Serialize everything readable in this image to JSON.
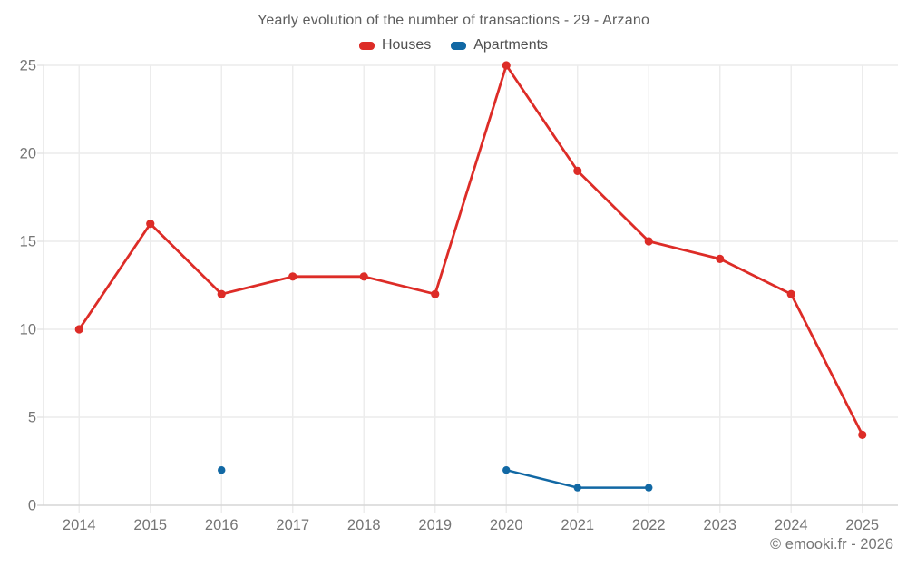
{
  "title": "Yearly evolution of the number of transactions - 29 - Arzano",
  "legend": [
    {
      "label": "Houses",
      "color": "#dd2c27"
    },
    {
      "label": "Apartments",
      "color": "#1168a4"
    }
  ],
  "footer": {
    "copyright": "© emooki.fr - 2026"
  },
  "chart_data": {
    "type": "line",
    "title": "Yearly evolution of the number of transactions - 29 - Arzano",
    "categories": [
      "2014",
      "2015",
      "2016",
      "2017",
      "2018",
      "2019",
      "2020",
      "2021",
      "2022",
      "2023",
      "2024",
      "2025"
    ],
    "series": [
      {
        "name": "Houses",
        "color": "#dd2c27",
        "values": [
          10,
          16,
          12,
          13,
          13,
          12,
          25,
          19,
          15,
          14,
          12,
          4
        ]
      },
      {
        "name": "Apartments",
        "color": "#1168a4",
        "values": [
          null,
          null,
          2,
          null,
          null,
          null,
          2,
          1,
          1,
          null,
          null,
          null
        ]
      }
    ],
    "xlabel": "",
    "ylabel": "",
    "ylim": [
      0,
      25
    ],
    "yticks": [
      0,
      5,
      10,
      15,
      20,
      25
    ],
    "grid": true,
    "legend_position": "top"
  }
}
